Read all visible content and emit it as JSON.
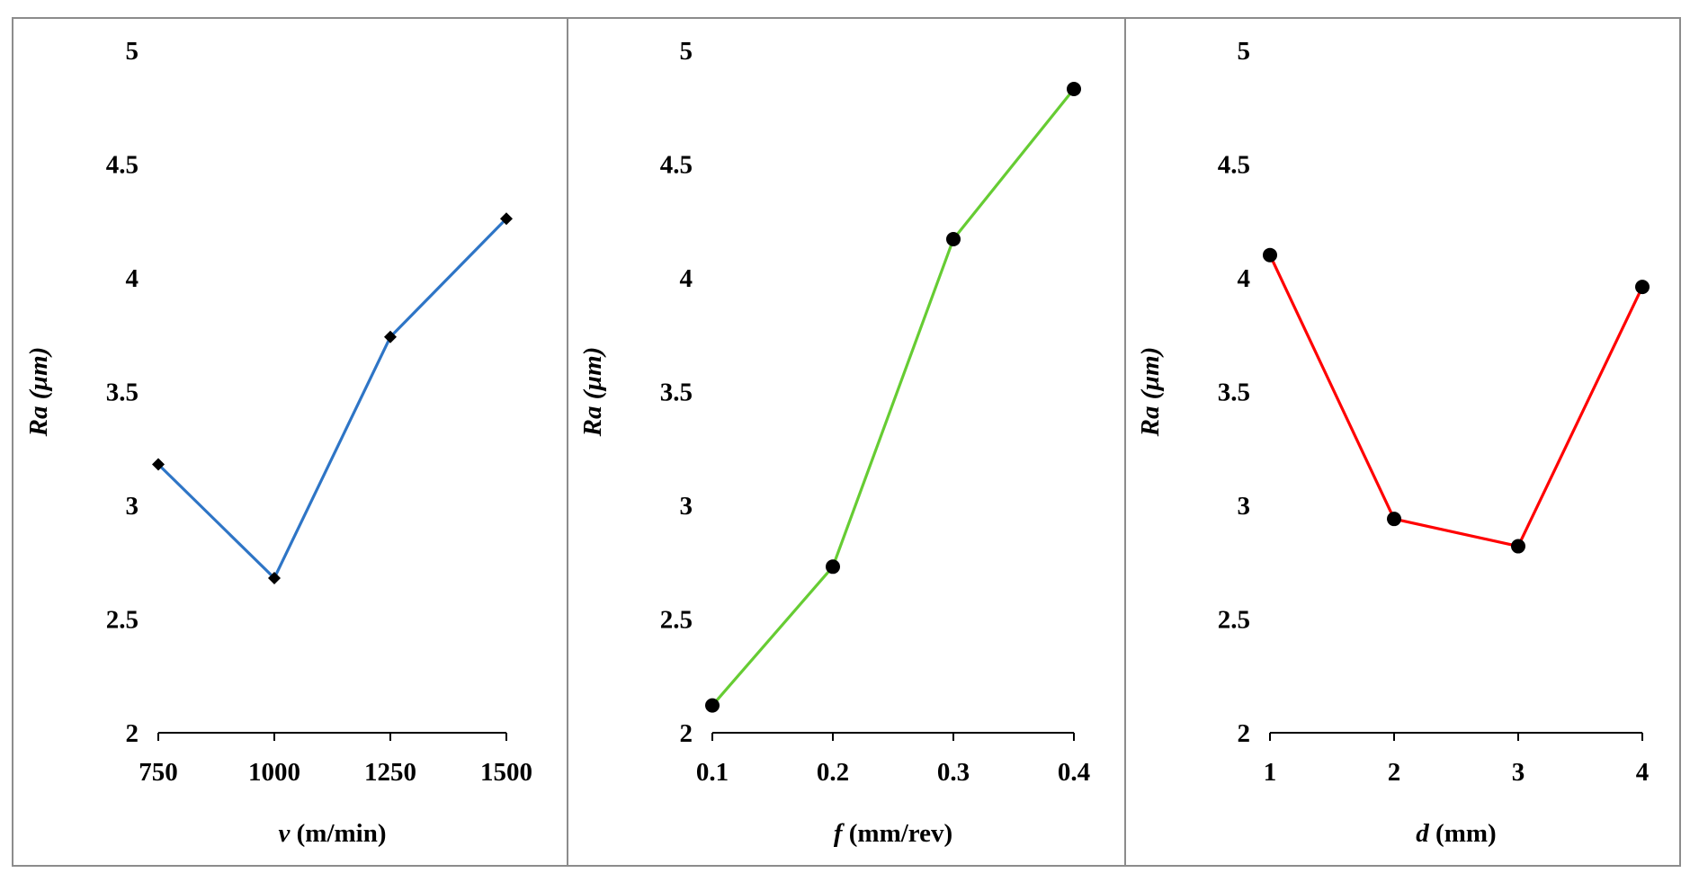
{
  "chart_data": [
    {
      "type": "line",
      "title": "",
      "xlabel": {
        "var": "v",
        "unit": " (m/min)"
      },
      "ylabel": {
        "var": "Ra",
        "unit": " (µm)"
      },
      "categories": [
        "750",
        "1000",
        "1250",
        "1500"
      ],
      "values": [
        3.18,
        2.68,
        3.74,
        4.26
      ],
      "ylim": [
        2,
        5
      ],
      "yticks": [
        "2",
        "2.5",
        "3",
        "3.5",
        "4",
        "4.5",
        "5"
      ],
      "color": "#2e75c6",
      "marker": "diamond"
    },
    {
      "type": "line",
      "title": "",
      "xlabel": {
        "var": "f",
        "unit": " (mm/rev)"
      },
      "ylabel": {
        "var": "Ra",
        "unit": " (µm)"
      },
      "categories": [
        "0.1",
        "0.2",
        "0.3",
        "0.4"
      ],
      "values": [
        2.12,
        2.73,
        4.17,
        4.83
      ],
      "ylim": [
        2,
        5
      ],
      "yticks": [
        "2",
        "2.5",
        "3",
        "3.5",
        "4",
        "4.5",
        "5"
      ],
      "color": "#66cc33",
      "marker": "circle"
    },
    {
      "type": "line",
      "title": "",
      "xlabel": {
        "var": "d",
        "unit": " (mm)"
      },
      "ylabel": {
        "var": "Ra",
        "unit": " (µm)"
      },
      "categories": [
        "1",
        "2",
        "3",
        "4"
      ],
      "values": [
        4.1,
        2.94,
        2.82,
        3.96
      ],
      "ylim": [
        2,
        5
      ],
      "yticks": [
        "2",
        "2.5",
        "3",
        "3.5",
        "4",
        "4.5",
        "5"
      ],
      "color": "#ff0000",
      "marker": "circle"
    }
  ]
}
